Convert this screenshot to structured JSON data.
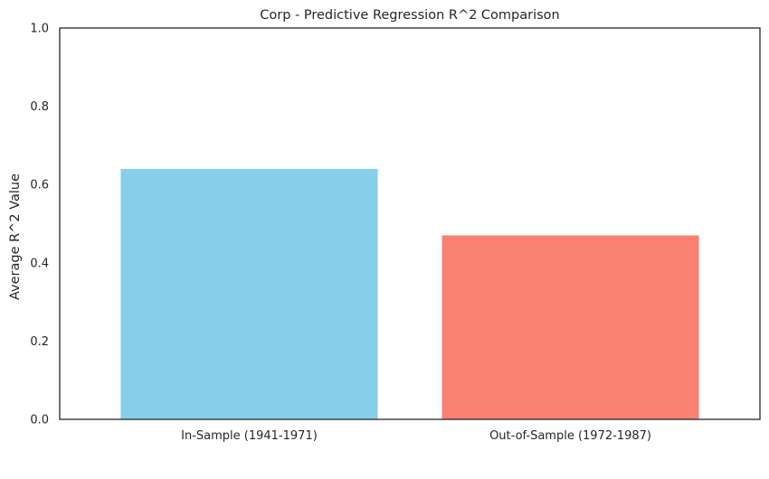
{
  "chart_data": {
    "type": "bar",
    "title": "Corp - Predictive Regression R^2 Comparison",
    "xlabel": "",
    "ylabel": "Average R^2 Value",
    "categories": [
      "In-Sample (1941-1971)",
      "Out-of-Sample (1972-1987)"
    ],
    "values": [
      0.64,
      0.47
    ],
    "colors": [
      "#87ceeb",
      "#fa8072"
    ],
    "ylim": [
      0,
      1
    ],
    "yticks": [
      "0.0",
      "0.2",
      "0.4",
      "0.6",
      "0.8",
      "1.0"
    ],
    "grid": false,
    "legend": "none"
  }
}
